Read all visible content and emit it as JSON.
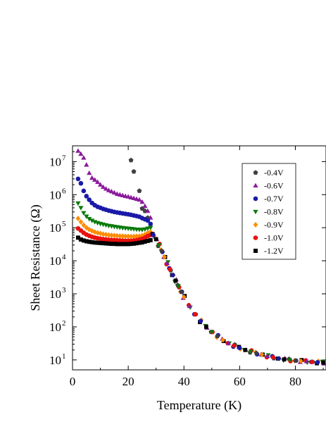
{
  "chart_data": {
    "type": "scatter",
    "title": "",
    "xlabel": "Temperature (K)",
    "ylabel": "Sheet Resistance (Ω)",
    "xlim": [
      0,
      91
    ],
    "ylim": [
      5,
      30000000
    ],
    "y_scale": "log",
    "grid": false,
    "legend_position": "top-right",
    "x_ticks": [
      0,
      20,
      40,
      60,
      80
    ],
    "x_tick_labels": [
      "0",
      "20",
      "40",
      "60",
      "80"
    ],
    "y_ticks": [
      10,
      100,
      1000,
      10000,
      100000,
      1000000,
      10000000
    ],
    "y_tick_labels": [
      "10",
      "10",
      "10",
      "10",
      "10",
      "10",
      "10"
    ],
    "y_tick_exponents": [
      "1",
      "2",
      "3",
      "4",
      "5",
      "6",
      "7"
    ],
    "series": [
      {
        "name": "-0.4V",
        "color": "#404040",
        "marker": "pentagon",
        "x": [
          21,
          22,
          24,
          25,
          26,
          27
        ],
        "y": [
          11000000,
          5000000,
          1300000,
          380000,
          320000,
          200000
        ]
      },
      {
        "name": "-0.6V",
        "color": "#8b1a9b",
        "marker": "triangle-up",
        "x": [
          2,
          3,
          4,
          5,
          6,
          7,
          8,
          9,
          10,
          11,
          12,
          13,
          14,
          15,
          16,
          17,
          18,
          19,
          20,
          21,
          22,
          23,
          24,
          25,
          26,
          27,
          28
        ],
        "y": [
          21000000,
          17000000,
          13000000,
          8000000,
          4500000,
          3200000,
          2800000,
          2400000,
          2000000,
          1700000,
          1500000,
          1350000,
          1250000,
          1150000,
          1050000,
          1000000,
          950000,
          900000,
          870000,
          820000,
          780000,
          740000,
          700000,
          600000,
          450000,
          320000,
          200000
        ]
      },
      {
        "name": "-0.7V",
        "color": "#1a1aa8",
        "marker": "circle",
        "x": [
          2,
          3,
          4,
          5,
          6,
          7,
          8,
          9,
          10,
          11,
          12,
          13,
          14,
          15,
          16,
          17,
          18,
          19,
          20,
          21,
          22,
          23,
          24,
          25,
          26,
          27,
          28
        ],
        "y": [
          3000000,
          2200000,
          1300000,
          900000,
          700000,
          560000,
          480000,
          430000,
          400000,
          370000,
          350000,
          330000,
          315000,
          300000,
          290000,
          280000,
          270000,
          262000,
          255000,
          245000,
          235000,
          225000,
          215000,
          195000,
          180000,
          165000,
          130000
        ]
      },
      {
        "name": "-0.8V",
        "color": "#0a7a0a",
        "marker": "triangle-down",
        "x": [
          2,
          3,
          4,
          5,
          6,
          7,
          8,
          9,
          10,
          11,
          12,
          13,
          14,
          15,
          16,
          17,
          18,
          19,
          20,
          21,
          22,
          23,
          24,
          25,
          26,
          27,
          28
        ],
        "y": [
          550000,
          400000,
          280000,
          220000,
          185000,
          165000,
          150000,
          140000,
          132000,
          126000,
          120000,
          115000,
          112000,
          108000,
          105000,
          102000,
          99000,
          97000,
          95000,
          93000,
          91000,
          89000,
          88000,
          87000,
          90000,
          95000,
          100000
        ]
      },
      {
        "name": "-0.9V",
        "color": "#ff8c00",
        "marker": "diamond",
        "x": [
          2,
          3,
          4,
          5,
          6,
          7,
          8,
          9,
          10,
          11,
          12,
          13,
          14,
          15,
          16,
          17,
          18,
          19,
          20,
          21,
          22,
          23,
          24,
          25,
          26,
          27,
          28
        ],
        "y": [
          190000,
          150000,
          120000,
          100000,
          88000,
          80000,
          74000,
          70000,
          67000,
          64000,
          62000,
          60000,
          59000,
          58000,
          57000,
          56000,
          55500,
          55000,
          54500,
          54000,
          54500,
          55000,
          56000,
          58000,
          62000,
          70000,
          75000
        ]
      },
      {
        "name": "-1.0V",
        "color": "#e81010",
        "marker": "circle",
        "x": [
          2,
          3,
          4,
          5,
          6,
          7,
          8,
          9,
          10,
          11,
          12,
          13,
          14,
          15,
          16,
          17,
          18,
          19,
          20,
          21,
          22,
          23,
          24,
          25,
          26,
          27,
          28
        ],
        "y": [
          95000,
          82000,
          70000,
          62000,
          57000,
          53000,
          50000,
          48000,
          46500,
          45000,
          44000,
          43000,
          42500,
          42000,
          41500,
          41000,
          40500,
          40000,
          40000,
          40000,
          41000,
          42000,
          44000,
          46000,
          50000,
          56000,
          60000
        ]
      },
      {
        "name": "-1.2V",
        "color": "#000000",
        "marker": "square",
        "x": [
          2,
          3,
          4,
          5,
          6,
          7,
          8,
          9,
          10,
          11,
          12,
          13,
          14,
          15,
          16,
          17,
          18,
          19,
          20,
          21,
          22,
          23,
          24,
          25,
          26,
          27,
          28
        ],
        "y": [
          50000,
          44000,
          41000,
          39000,
          37500,
          36500,
          35500,
          35000,
          34500,
          34000,
          33500,
          33000,
          32500,
          32500,
          32000,
          32000,
          32000,
          32000,
          32000,
          32500,
          33000,
          34000,
          35000,
          36000,
          38000,
          40000,
          42000
        ]
      },
      {
        "name": "",
        "color": "#404040",
        "marker": "mixed-overlap",
        "x": [
          29,
          30,
          31,
          32,
          33,
          34,
          35,
          36,
          37,
          38,
          39,
          40,
          42,
          44,
          46,
          48,
          50,
          52,
          54,
          56,
          58,
          60,
          62,
          64,
          66,
          68,
          70,
          72,
          74,
          76,
          78,
          80,
          82,
          84,
          86,
          88,
          90
        ],
        "y": [
          60000,
          45000,
          30000,
          20000,
          13000,
          8500,
          5500,
          3700,
          2500,
          1700,
          1150,
          800,
          420,
          240,
          150,
          100,
          70,
          52,
          40,
          32,
          27,
          23,
          20,
          18,
          16,
          14.5,
          13,
          12,
          11,
          10.4,
          9.9,
          9.5,
          9.2,
          9,
          8.7,
          8.5,
          8.3
        ]
      }
    ]
  }
}
